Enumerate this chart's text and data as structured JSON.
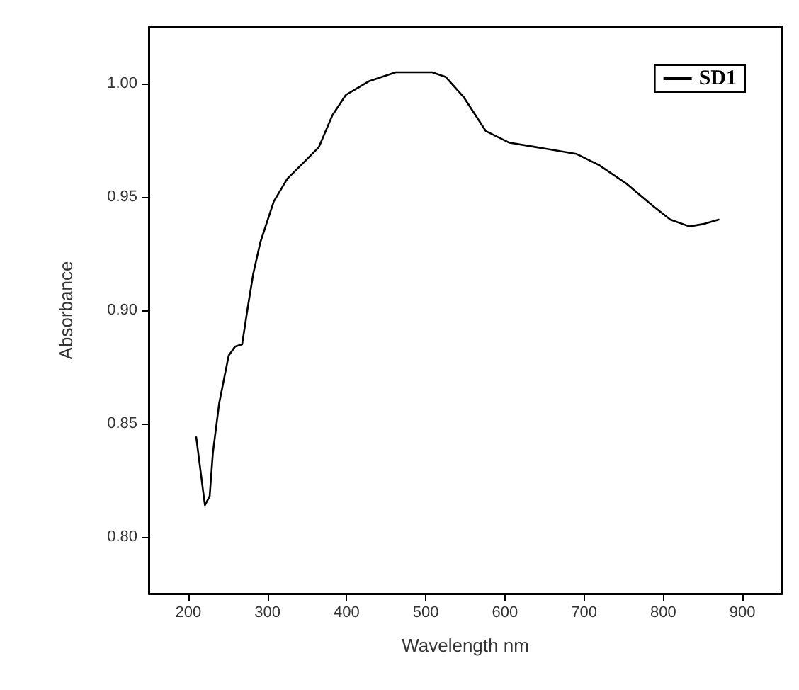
{
  "chart_data": {
    "type": "line",
    "xlabel": "Wavelength nm",
    "ylabel": "Absorbance",
    "xlim": [
      150,
      950
    ],
    "xticks": [
      200,
      300,
      400,
      500,
      600,
      700,
      800,
      900
    ],
    "ylim": [
      0.775,
      1.025
    ],
    "yticks": [
      {
        "value": 0.8,
        "label": "0.80"
      },
      0.85,
      {
        "value": 0.9,
        "label": "0.90"
      },
      0.95,
      {
        "value": 1.0,
        "label": "1.00"
      }
    ],
    "legend": "top right",
    "grid": false,
    "marker": "none",
    "line_style": "solid",
    "series": [
      {
        "name": "SD1",
        "color": "#000000",
        "x": [
          210,
          221,
          227,
          231,
          239,
          251,
          259,
          268,
          275,
          282,
          291,
          308,
          325,
          348,
          365,
          382,
          399,
          428,
          462,
          508,
          525,
          548,
          576,
          605,
          639,
          690,
          719,
          753,
          787,
          809,
          833,
          850,
          870
        ],
        "values": [
          0.844,
          0.814,
          0.818,
          0.837,
          0.859,
          0.88,
          0.884,
          0.885,
          0.901,
          0.916,
          0.93,
          0.948,
          0.958,
          0.966,
          0.972,
          0.986,
          0.995,
          1.001,
          1.005,
          1.005,
          1.003,
          0.994,
          0.979,
          0.974,
          0.972,
          0.969,
          0.964,
          0.956,
          0.946,
          0.94,
          0.937,
          0.938,
          0.94
        ]
      }
    ]
  }
}
